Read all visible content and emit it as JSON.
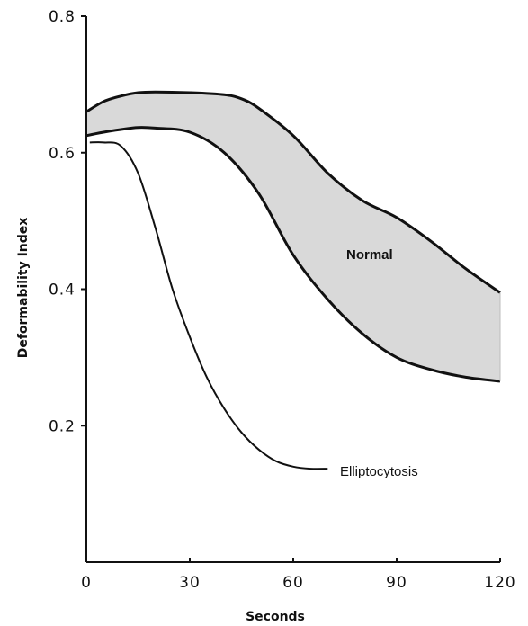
{
  "chart_data": {
    "type": "area",
    "xlabel": "Seconds",
    "ylabel": "Deformability Index",
    "xlim": [
      0,
      120
    ],
    "ylim": [
      0,
      0.8
    ],
    "x_ticks": [
      0,
      30,
      60,
      90,
      120
    ],
    "x_tick_labels": [
      "0",
      "30",
      "60",
      "90",
      "120"
    ],
    "y_ticks": [
      0.2,
      0.4,
      0.6,
      0.8
    ],
    "y_tick_labels": [
      "0.2",
      "0.4",
      "0.6",
      "0.8"
    ],
    "grid": false,
    "colors": {
      "band_fill": "#d9d9d9",
      "line": "#111111"
    },
    "band": {
      "label": "Normal",
      "upper": {
        "x": [
          0,
          5,
          10,
          15,
          20,
          30,
          40,
          45,
          50,
          60,
          70,
          80,
          90,
          100,
          110,
          120
        ],
        "y": [
          0.66,
          0.675,
          0.683,
          0.688,
          0.689,
          0.688,
          0.685,
          0.679,
          0.665,
          0.625,
          0.57,
          0.53,
          0.505,
          0.47,
          0.43,
          0.395
        ]
      },
      "lower": {
        "x": [
          0,
          5,
          10,
          15,
          20,
          30,
          40,
          50,
          60,
          70,
          80,
          90,
          100,
          110,
          120
        ],
        "y": [
          0.625,
          0.63,
          0.634,
          0.637,
          0.636,
          0.63,
          0.6,
          0.54,
          0.45,
          0.385,
          0.335,
          0.3,
          0.282,
          0.271,
          0.265
        ]
      }
    },
    "series": [
      {
        "name": "Elliptocytosis",
        "x": [
          1,
          5,
          10,
          15,
          20,
          25,
          30,
          35,
          40,
          45,
          50,
          55,
          60,
          65,
          70
        ],
        "y": [
          0.615,
          0.615,
          0.61,
          0.57,
          0.49,
          0.4,
          0.33,
          0.27,
          0.225,
          0.19,
          0.165,
          0.148,
          0.14,
          0.137,
          0.137
        ]
      }
    ]
  }
}
